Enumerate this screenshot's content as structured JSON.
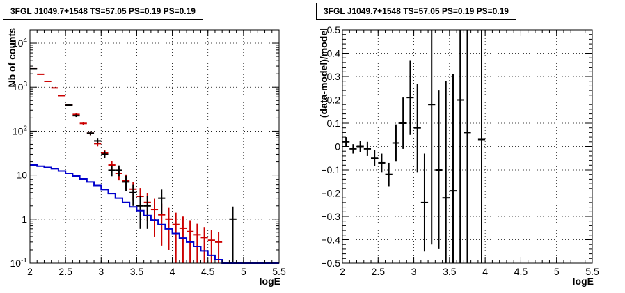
{
  "chart_data": [
    {
      "type": "line",
      "title": "3FGL J1049.7+1548 TS=57.05 PS=0.19 PS=0.19",
      "xlabel": "logE",
      "ylabel": "Nb of counts",
      "xlim": [
        2,
        5.5
      ],
      "ylim": [
        0.1,
        20000
      ],
      "ylog": true,
      "grid": true,
      "x_ticks": [
        "2",
        "2.5",
        "3",
        "3.5",
        "4",
        "4.5",
        "5",
        "5.5"
      ],
      "y_ticks": [
        "10^-1",
        "1",
        "10",
        "10^2",
        "10^3",
        "10^4"
      ],
      "series": [
        {
          "color": "#cc0000",
          "style": "points",
          "x": [
            2.05,
            2.15,
            2.25,
            2.35,
            2.45,
            2.55,
            2.65,
            2.75,
            2.85,
            2.95,
            3.05,
            3.15,
            3.25,
            3.35,
            3.45,
            3.55,
            3.65,
            3.75,
            3.85,
            3.95,
            4.05,
            4.15,
            4.25,
            4.35,
            4.45,
            4.55,
            4.65
          ],
          "y": [
            2700,
            1950,
            1350,
            960,
            640,
            400,
            240,
            150,
            90,
            52,
            32,
            17,
            11,
            7.5,
            4.8,
            3.3,
            2.4,
            1.65,
            1.25,
            1.0,
            0.75,
            0.62,
            0.52,
            0.44,
            0.38,
            0.33,
            0.3
          ],
          "err_low": [
            0,
            0,
            0,
            0,
            0,
            20,
            15,
            12,
            10,
            7,
            5,
            4,
            3.4,
            2.8,
            2.2,
            1.8,
            1.5,
            1.25,
            1.0,
            0.8,
            0.65,
            0.52,
            0.42,
            0.34,
            0.28,
            0.23,
            0.2
          ],
          "err_high": [
            0,
            0,
            0,
            0,
            0,
            20,
            15,
            12,
            10,
            7,
            5,
            4,
            3.4,
            2.8,
            2.2,
            1.8,
            1.5,
            1.25,
            1.0,
            0.8,
            0.65,
            0.52,
            0.42,
            0.34,
            0.28,
            0.23,
            0.2
          ]
        },
        {
          "color": "#000000",
          "style": "points",
          "x": [
            2.05,
            2.55,
            2.65,
            2.85,
            2.95,
            3.05,
            3.15,
            3.25,
            3.35,
            3.45,
            3.55,
            3.65,
            3.85,
            4.85
          ],
          "y": [
            2650,
            390,
            225,
            90,
            60,
            30,
            13,
            13,
            7,
            4,
            2,
            2,
            3,
            1
          ],
          "err_low": [
            0,
            20,
            15,
            9.5,
            7.7,
            5.5,
            3.6,
            3.6,
            2.6,
            2,
            1.4,
            1.4,
            1.7,
            0.93
          ],
          "err_high": [
            0,
            20,
            15,
            9.5,
            7.7,
            5.5,
            3.6,
            3.6,
            2.6,
            2,
            1.4,
            1.4,
            1.7,
            0.93
          ]
        },
        {
          "color": "#0000cc",
          "style": "step",
          "bin_edges": [
            2.0,
            2.1,
            2.2,
            2.3,
            2.4,
            2.5,
            2.6,
            2.7,
            2.8,
            2.9,
            3.0,
            3.1,
            3.2,
            3.3,
            3.4,
            3.5,
            3.6,
            3.7,
            3.8,
            3.9,
            4.0,
            4.1,
            4.2,
            4.3,
            4.4,
            4.5,
            4.6,
            4.7,
            4.8,
            4.9,
            5.0,
            5.1,
            5.2,
            5.3,
            5.4,
            5.5
          ],
          "values": [
            17,
            16,
            15,
            14,
            12.5,
            11,
            9.5,
            8.2,
            7,
            5.8,
            4.7,
            3.8,
            3.0,
            2.4,
            1.9,
            1.55,
            1.2,
            0.95,
            0.75,
            0.6,
            0.47,
            0.37,
            0.3,
            0.24,
            0.19,
            0.15,
            0.12,
            0.1,
            0.1,
            0.1,
            0.1,
            0.1,
            0.1,
            0.1,
            0.1
          ]
        }
      ]
    },
    {
      "type": "scatter",
      "title": "3FGL J1049.7+1548 TS=57.05 PS=0.19 PS=0.19",
      "xlabel": "logE",
      "ylabel": "(data-model)/model",
      "xlim": [
        2,
        5.5
      ],
      "ylim": [
        -0.5,
        0.5
      ],
      "grid": true,
      "x_ticks": [
        "2",
        "2.5",
        "3",
        "3.5",
        "4",
        "4.5",
        "5",
        "5.5"
      ],
      "y_ticks": [
        "−0.5",
        "−0.4",
        "−0.3",
        "−0.2",
        "−0.1",
        "0",
        "0.1",
        "0.2",
        "0.3",
        "0.4",
        "0.5"
      ],
      "series": [
        {
          "color": "#000000",
          "style": "points",
          "x": [
            2.05,
            2.15,
            2.25,
            2.35,
            2.45,
            2.55,
            2.65,
            2.75,
            2.85,
            2.95,
            3.05,
            3.15,
            3.25,
            3.35,
            3.45,
            3.55,
            3.65,
            3.75,
            3.95
          ],
          "y": [
            0.02,
            -0.01,
            0.0,
            -0.01,
            -0.05,
            -0.07,
            -0.12,
            0.015,
            0.1,
            0.21,
            0.08,
            -0.24,
            0.18,
            -0.1,
            -0.22,
            -0.19,
            0.2,
            0.06,
            0.03
          ],
          "err": [
            0.02,
            0.02,
            0.025,
            0.03,
            0.035,
            0.04,
            0.05,
            0.08,
            0.11,
            0.16,
            0.19,
            0.21,
            0.6,
            0.34,
            0.5,
            0.5,
            0.8,
            0.8,
            0.8
          ]
        }
      ]
    }
  ]
}
